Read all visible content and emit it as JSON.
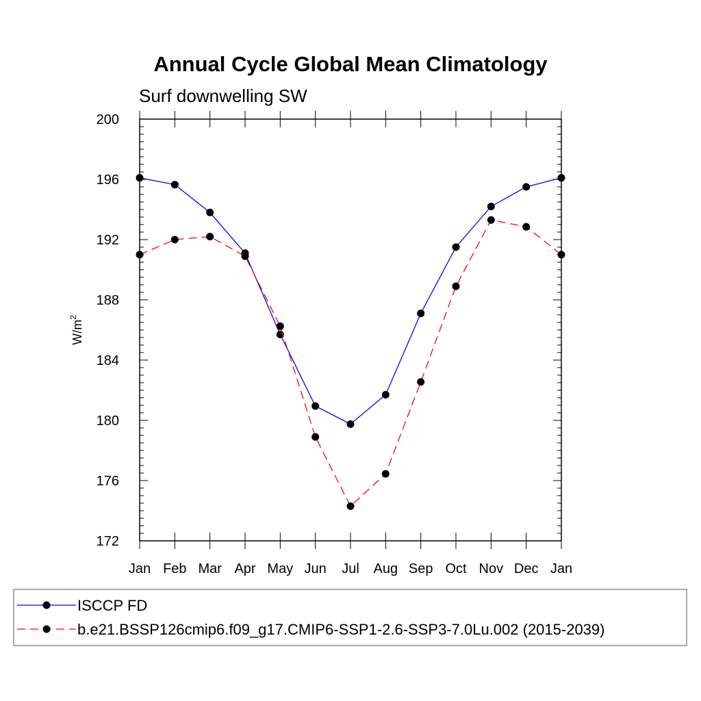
{
  "chart_data": {
    "type": "line",
    "title": "Annual Cycle Global Mean Climatology",
    "subtitle": "Surf downwelling SW",
    "ylabel": "W/m",
    "ylabel_sup": "2",
    "xlabel": "",
    "categories": [
      "Jan",
      "Feb",
      "Mar",
      "Apr",
      "May",
      "Jun",
      "Jul",
      "Aug",
      "Sep",
      "Oct",
      "Nov",
      "Dec",
      "Jan"
    ],
    "ylim": [
      172,
      200
    ],
    "yticks": [
      172,
      176,
      180,
      184,
      188,
      192,
      196,
      200
    ],
    "grid": false,
    "legend_position": "bottom",
    "series": [
      {
        "name": "ISCCP FD",
        "color": "#0000ff",
        "line_style": "solid",
        "marker": "filled-circle",
        "values": [
          196.1,
          195.65,
          193.8,
          191.1,
          185.7,
          180.95,
          179.75,
          181.7,
          187.1,
          191.5,
          194.2,
          195.5,
          196.1
        ]
      },
      {
        "name": "b.e21.BSSP126cmip6.f09_g17.CMIP6-SSP1-2.6-SSP3-7.0Lu.002 (2015-2039)",
        "color": "#ff0000",
        "line_style": "dashed",
        "marker": "filled-circle",
        "values": [
          191.0,
          192.0,
          192.2,
          190.9,
          186.25,
          178.9,
          174.3,
          176.45,
          182.55,
          188.9,
          193.3,
          192.85,
          191.0
        ]
      }
    ]
  }
}
